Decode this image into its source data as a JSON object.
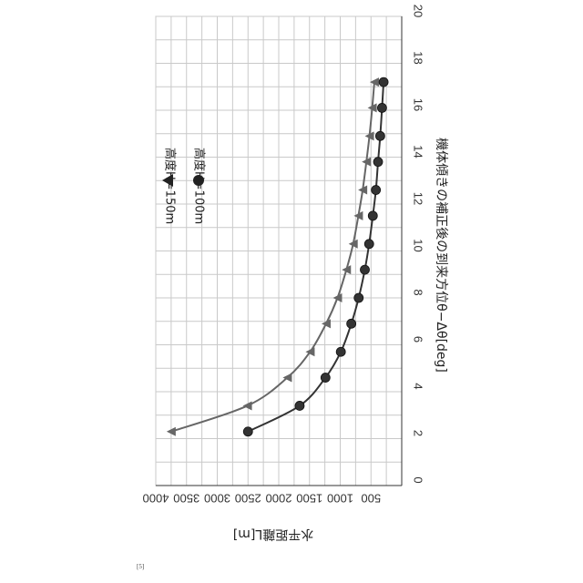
{
  "figure_ref": "[5]",
  "chart_data": {
    "type": "line",
    "x_axis": {
      "label": "機体傾きの補正後の到来方位θ−Δθ[deg]",
      "range": [
        0,
        20
      ],
      "ticks": [
        0,
        2,
        4,
        6,
        8,
        10,
        12,
        14,
        16,
        18,
        20
      ]
    },
    "y_axis": {
      "label": "水平距離L[m]",
      "range": [
        0,
        4000
      ],
      "ticks": [
        500,
        1000,
        1500,
        2000,
        2500,
        3000,
        3500,
        4000
      ]
    },
    "grid": true,
    "legend_position": "top-left",
    "series": [
      {
        "name": "高度H=150m",
        "marker": "triangle",
        "color": "#666666",
        "x": [
          2.3,
          3.4,
          4.6,
          5.7,
          6.9,
          8.0,
          9.2,
          10.3,
          11.5,
          12.6,
          13.8,
          14.9,
          16.1,
          17.2
        ],
        "y": [
          3750,
          2510,
          1860,
          1490,
          1230,
          1045,
          900,
          790,
          705,
          635,
          575,
          525,
          480,
          445
        ]
      },
      {
        "name": "高度H=100m",
        "marker": "circle",
        "color": "#333333",
        "x": [
          2.3,
          3.4,
          4.6,
          5.7,
          6.9,
          8.0,
          9.2,
          10.3,
          11.5,
          12.6,
          13.8,
          14.9,
          16.1,
          17.2
        ],
        "y": [
          2500,
          1660,
          1240,
          990,
          820,
          700,
          600,
          530,
          470,
          420,
          385,
          350,
          320,
          295
        ]
      }
    ]
  }
}
